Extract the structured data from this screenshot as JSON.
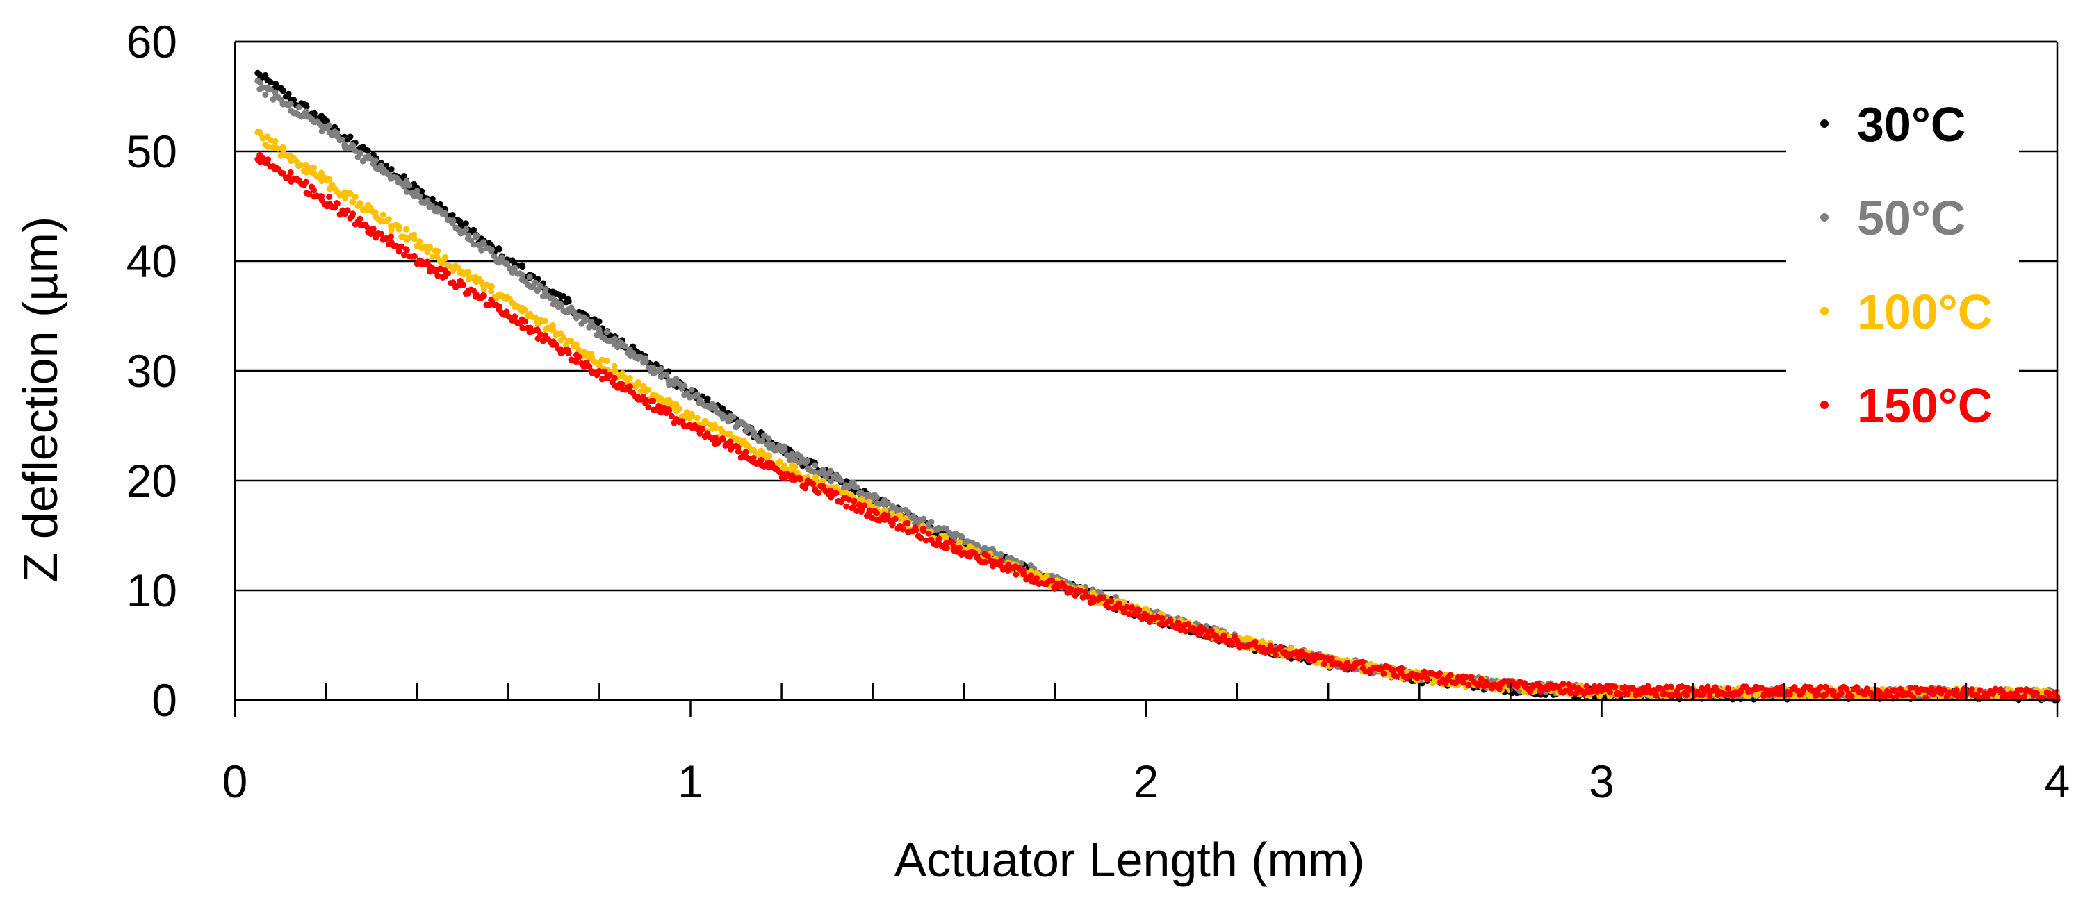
{
  "chart_data": {
    "type": "scatter",
    "title": "",
    "xlabel": "Actuator Length (mm)",
    "ylabel": "Z deflection (µm)",
    "xlim": [
      0,
      4
    ],
    "ylim": [
      0,
      60
    ],
    "x_major_ticks": [
      0,
      1,
      2,
      3,
      4
    ],
    "x_minor_ticks": [
      0.2,
      0.4,
      0.6,
      0.8,
      1.2,
      1.4,
      1.6,
      1.8,
      2.2,
      2.4,
      2.6,
      2.8,
      3.2,
      3.4,
      3.6,
      3.8
    ],
    "y_ticks": [
      0,
      10,
      20,
      30,
      40,
      50,
      60
    ],
    "x_tick_labels": [
      "0",
      "1",
      "2",
      "3",
      "4"
    ],
    "y_tick_labels": [
      "0",
      "10",
      "20",
      "30",
      "40",
      "50",
      "60"
    ],
    "grid": "horizontal",
    "legend_position": "top-right",
    "series": [
      {
        "name": "30°C",
        "color": "#000000",
        "x": [
          0.05,
          0.2,
          0.4,
          0.6,
          0.8,
          1.0,
          1.2,
          1.4,
          1.6,
          1.8,
          2.0,
          2.2,
          2.4,
          2.6,
          2.8,
          3.0,
          3.2,
          3.4,
          3.6,
          3.8,
          4.0
        ],
        "y": [
          57.0,
          52.5,
          46.5,
          40.0,
          34.0,
          28.0,
          22.8,
          18.3,
          14.2,
          10.7,
          7.7,
          5.3,
          3.4,
          2.0,
          1.1,
          0.6,
          0.5,
          0.5,
          0.5,
          0.5,
          0.4
        ]
      },
      {
        "name": "50°C",
        "color": "#7f7f7f",
        "x": [
          0.05,
          0.2,
          0.4,
          0.6,
          0.8,
          1.0,
          1.2,
          1.4,
          1.6,
          1.8,
          2.0,
          2.2,
          2.4,
          2.6,
          2.8,
          3.0,
          3.2,
          3.4,
          3.6,
          3.8,
          4.0
        ],
        "y": [
          56.0,
          52.0,
          46.0,
          39.5,
          33.5,
          27.8,
          22.7,
          18.4,
          14.4,
          10.9,
          7.9,
          5.5,
          3.6,
          2.2,
          1.3,
          0.8,
          0.6,
          0.6,
          0.6,
          0.6,
          0.5
        ]
      },
      {
        "name": "100°C",
        "color": "#ffc000",
        "x": [
          0.05,
          0.2,
          0.4,
          0.6,
          0.8,
          1.0,
          1.2,
          1.4,
          1.6,
          1.8,
          2.0,
          2.2,
          2.4,
          2.6,
          2.8,
          3.0,
          3.2,
          3.4,
          3.6,
          3.8,
          4.0
        ],
        "y": [
          51.5,
          47.2,
          41.7,
          36.3,
          30.8,
          25.7,
          21.4,
          17.4,
          13.8,
          10.6,
          7.8,
          5.4,
          3.5,
          2.1,
          1.2,
          0.7,
          0.6,
          0.6,
          0.6,
          0.6,
          0.5
        ]
      },
      {
        "name": "150°C",
        "color": "#ff0000",
        "x": [
          0.05,
          0.2,
          0.4,
          0.6,
          0.8,
          1.0,
          1.2,
          1.4,
          1.6,
          1.8,
          2.0,
          2.2,
          2.4,
          2.6,
          2.8,
          3.0,
          3.2,
          3.4,
          3.6,
          3.8,
          4.0
        ],
        "y": [
          49.5,
          45.5,
          40.2,
          35.0,
          29.8,
          24.8,
          20.7,
          17.0,
          13.5,
          10.4,
          7.6,
          5.3,
          3.5,
          2.2,
          1.3,
          0.9,
          0.8,
          0.8,
          0.7,
          0.6,
          0.5
        ]
      }
    ]
  }
}
